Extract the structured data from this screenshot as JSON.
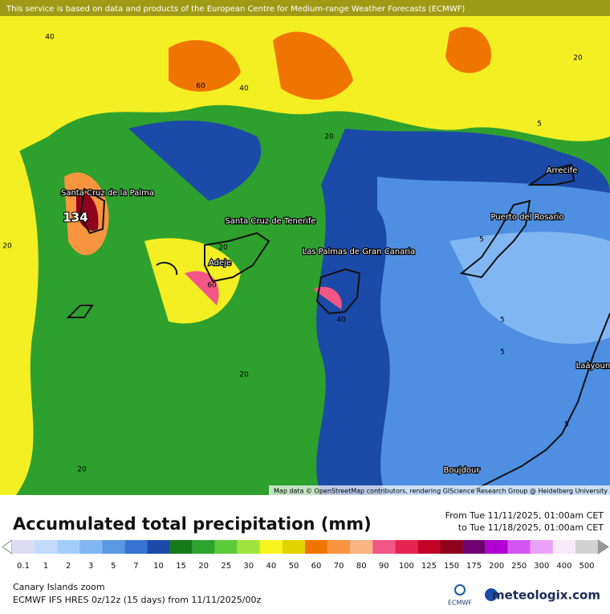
{
  "header": {
    "notice": "This service is based on data and products of the European Centre for Medium-range Weather Forecasts (ECMWF)"
  },
  "map": {
    "places": [
      "Santa Cruz de la Palma",
      "Santa Cruz de Tenerife",
      "Adeje",
      "Las Palmas de Gran Canaria",
      "Puerto del Rosario",
      "Arrecife",
      "Laâyoune",
      "Boujdour"
    ],
    "contour_labels": [
      "40",
      "60",
      "40",
      "20",
      "20",
      "20",
      "60",
      "40",
      "20",
      "20",
      "5",
      "5",
      "5",
      "5",
      "5",
      "20",
      "134"
    ],
    "attribution": "Map data © OpenStreetMap contributors, rendering GIScience Research Group @ Heidelberg University"
  },
  "legend": {
    "title": "Accumulated total precipitation (mm)",
    "period_from": "From Tue 11/11/2025, 01:00am CET",
    "period_to": "to Tue 11/18/2025, 01:00am CET",
    "levels": [
      0.1,
      1,
      2,
      3,
      5,
      7,
      10,
      15,
      20,
      25,
      30,
      40,
      50,
      60,
      70,
      80,
      90,
      100,
      125,
      150,
      175,
      200,
      250,
      300,
      400,
      500
    ],
    "colors": [
      "#dcdcf4",
      "#c0dcfa",
      "#a4cdfa",
      "#82b6f2",
      "#5a98e4",
      "#3674d2",
      "#1c4aa8",
      "#157a1a",
      "#2da52d",
      "#5ccb3a",
      "#9ee43c",
      "#f6f41e",
      "#e2d400",
      "#f07400",
      "#f8953e",
      "#f9b482",
      "#f25686",
      "#e62450",
      "#c20424",
      "#8e001c",
      "#6e0070",
      "#b000d2",
      "#d456f2",
      "#eaa2f8",
      "#f8eaf8",
      "#d2d2d2"
    ]
  },
  "footer": {
    "region": "Canary Islands zoom",
    "model": "ECMWF IFS HRES 0z/12z (15 days) from 11/11/2025/00z",
    "ecmwf": "ECMWF",
    "brand": "meteologix.com"
  }
}
